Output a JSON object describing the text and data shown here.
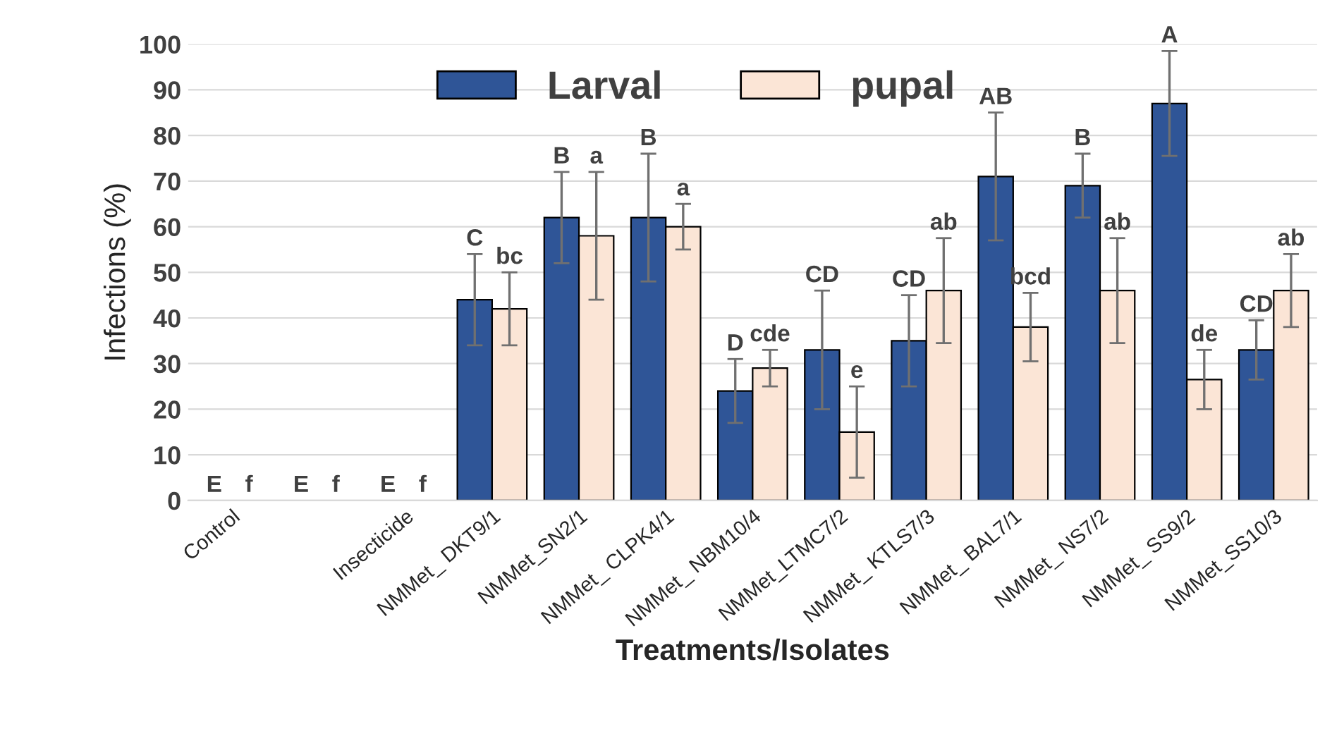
{
  "chart_data": {
    "type": "bar",
    "xlabel": "Treatments/Isolates",
    "ylabel": "Infections (%)",
    "categories": [
      "Control",
      null,
      "Insecticide",
      "NMMet_ DKT9/1",
      "NMMet_SN2/1",
      "NMMet_ CLPK4/1",
      "NMMet_ NBM10/4",
      "NMMet_LTMC7/2",
      "NMMet_ KTLS7/3",
      "NMMet_ BAL7/1",
      "NMMet_ NS7/2",
      "NMMet_ SS9/2",
      "NMMet_SS10/3"
    ],
    "series": [
      {
        "name": "Larval",
        "color": "#2f5597",
        "values": [
          0,
          0,
          0,
          44,
          62,
          62,
          24,
          33,
          35,
          71,
          69,
          87,
          33
        ],
        "errors": [
          null,
          null,
          null,
          10,
          10,
          14,
          7,
          13,
          10,
          14,
          7,
          11.5,
          6.5
        ],
        "value_labels": [
          "E",
          "E",
          "E",
          "C",
          "B",
          "B",
          "D",
          "CD",
          "CD",
          "AB",
          "B",
          "A",
          "CD"
        ]
      },
      {
        "name": "pupal",
        "color": "#fbe5d6",
        "values": [
          0,
          0,
          0,
          42,
          58,
          60,
          29,
          15,
          46,
          38,
          46,
          26.5,
          46
        ],
        "errors": [
          null,
          null,
          null,
          8,
          14,
          5,
          4,
          10,
          11.5,
          7.5,
          11.5,
          6.5,
          8
        ],
        "value_labels": [
          "f",
          "f",
          "f",
          "bc",
          "a",
          "a",
          "cde",
          "e",
          "ab",
          "bcd",
          "ab",
          "de",
          "ab"
        ]
      }
    ],
    "ylim": [
      0,
      100
    ],
    "yticks": [
      0,
      10,
      20,
      30,
      40,
      50,
      60,
      70,
      80,
      90,
      100
    ],
    "grid": "y",
    "legend": "top"
  }
}
